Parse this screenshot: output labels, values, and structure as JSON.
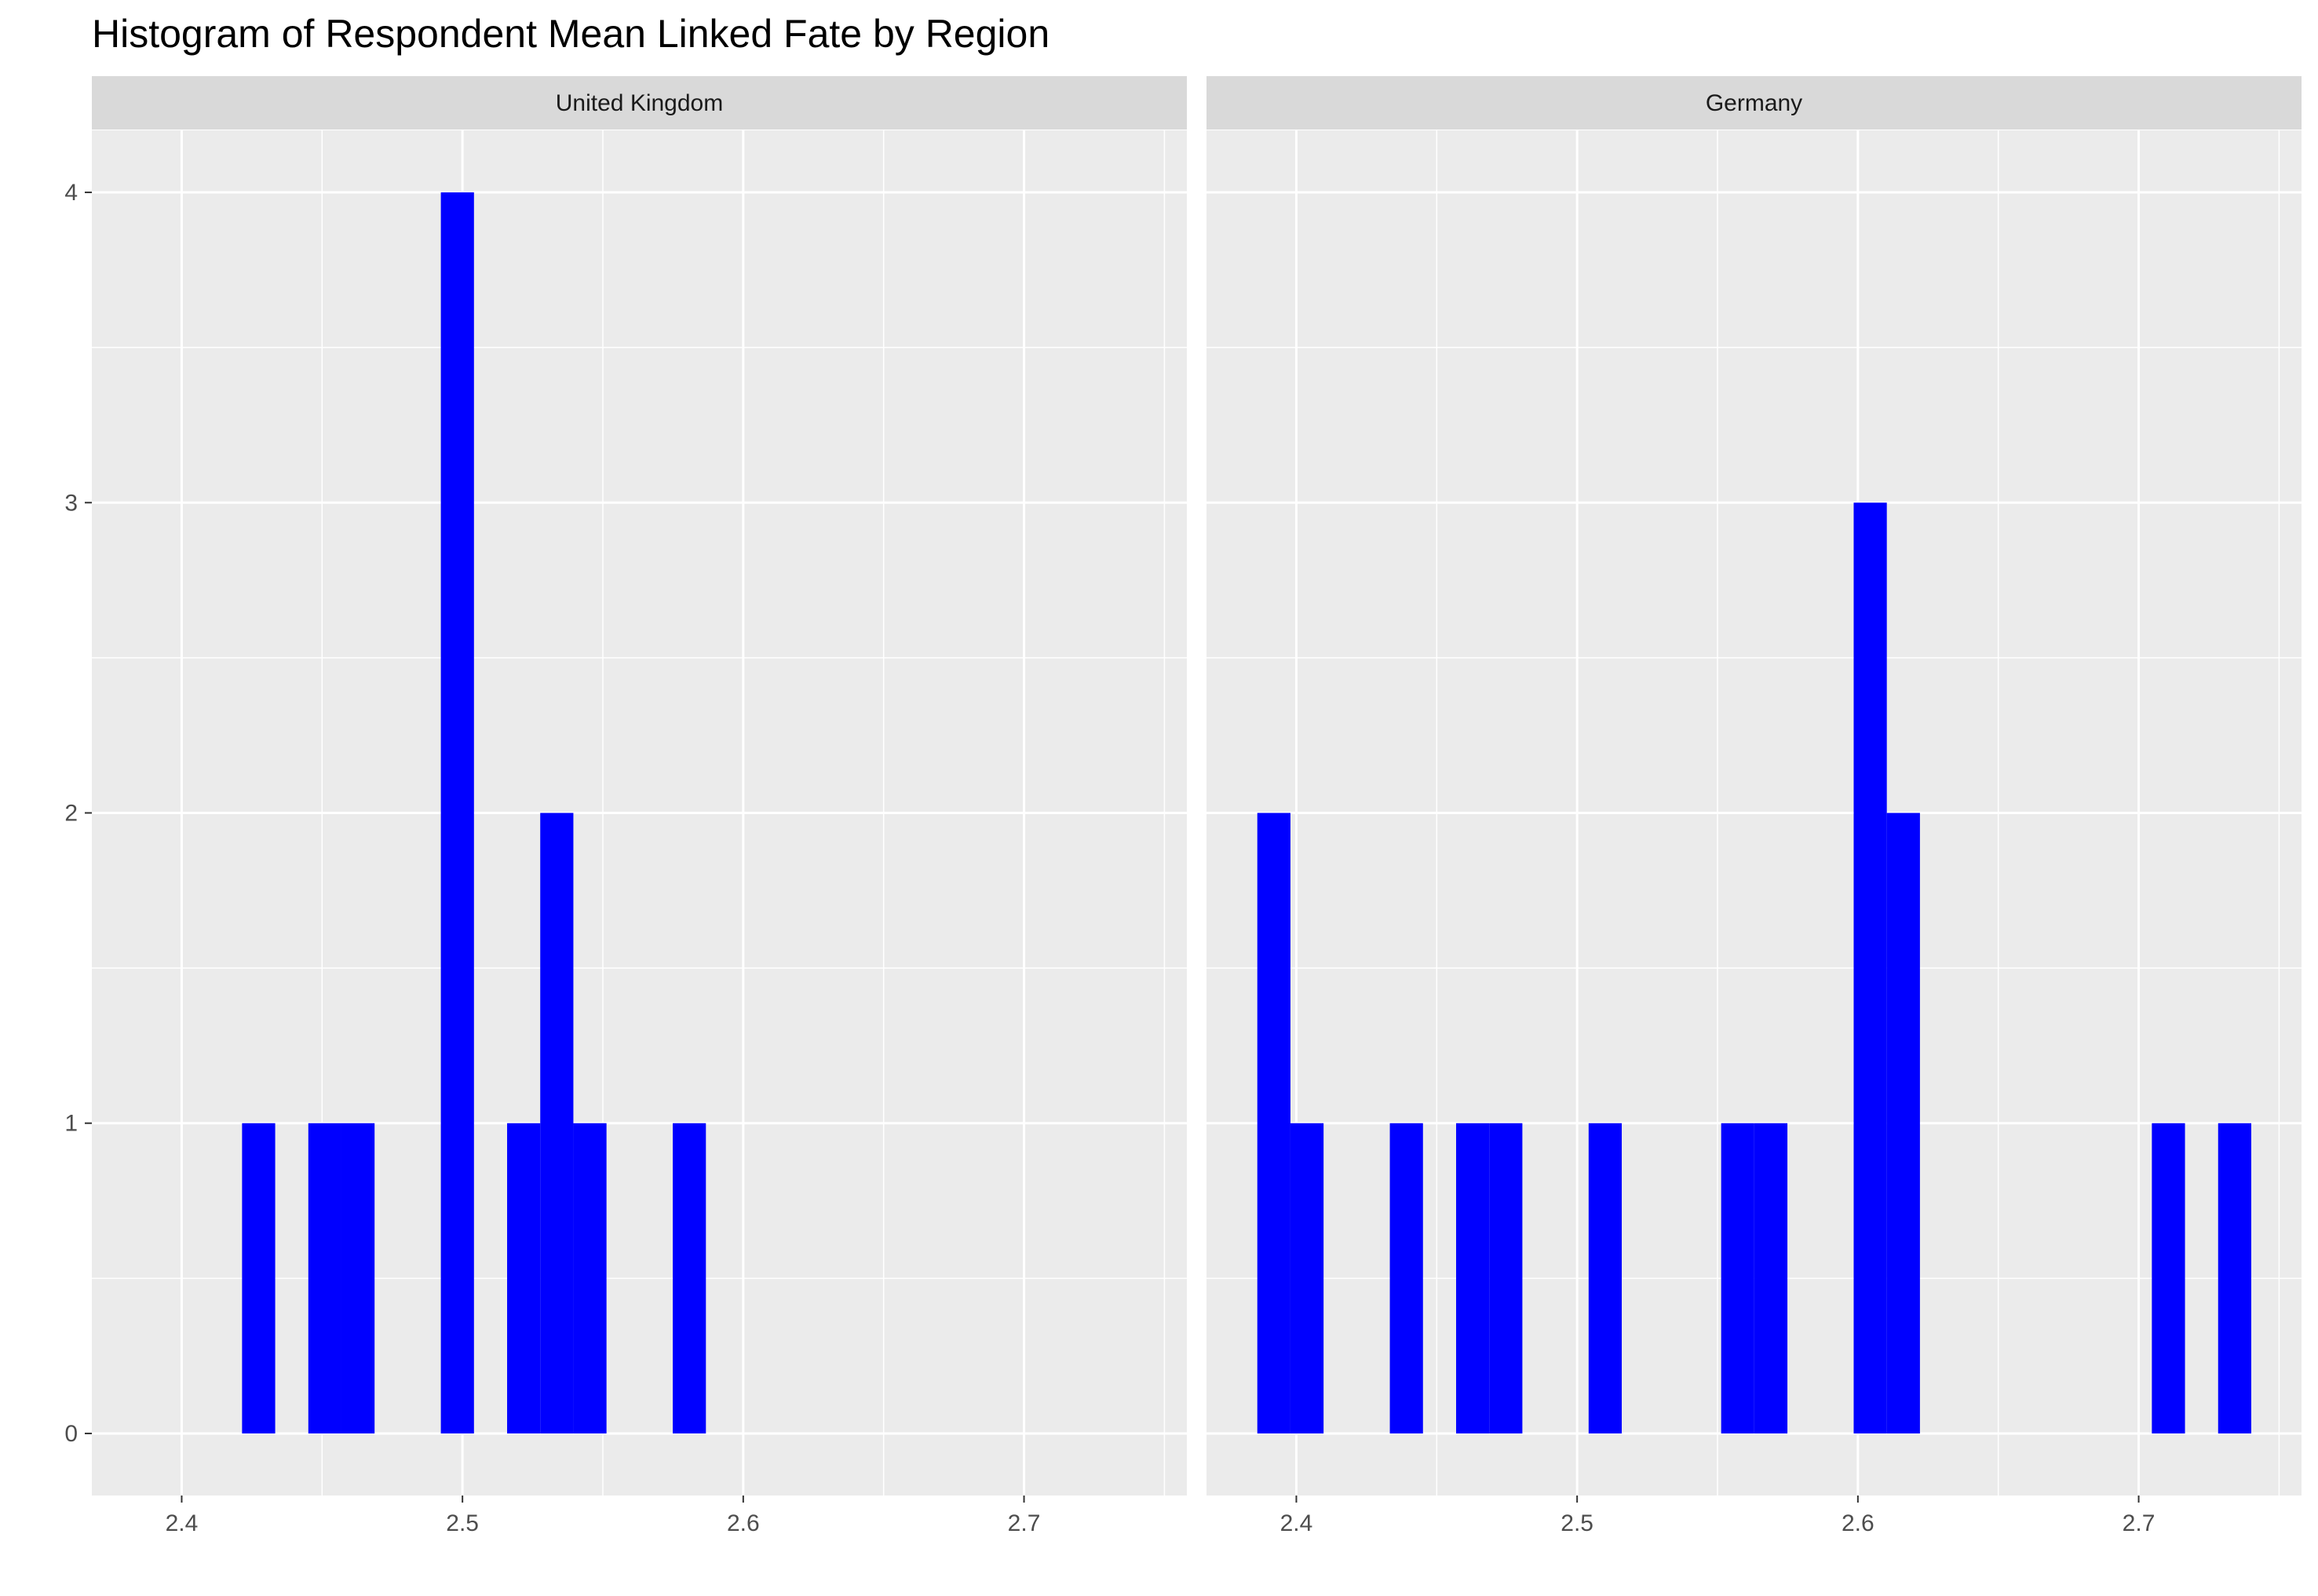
{
  "chart_data": {
    "type": "bar",
    "title": "Histogram of Respondent Mean Linked Fate by Region",
    "xlabel": "",
    "ylabel": "",
    "xlim": [
      2.368,
      2.758
    ],
    "ylim": [
      -0.2,
      4.2
    ],
    "x_ticks": [
      "2.4",
      "2.5",
      "2.6",
      "2.7"
    ],
    "y_ticks": [
      "0",
      "1",
      "2",
      "3",
      "4"
    ],
    "bin_width": 0.0118,
    "grid": true,
    "fill_color": "#0000ff",
    "panel_background": "#ebebeb",
    "strip_background": "#d9d9d9",
    "facets": [
      {
        "name": "United Kingdom",
        "bins": [
          {
            "x": 2.4274,
            "count": 1
          },
          {
            "x": 2.451,
            "count": 1
          },
          {
            "x": 2.4628,
            "count": 1
          },
          {
            "x": 2.4982,
            "count": 4
          },
          {
            "x": 2.5218,
            "count": 1
          },
          {
            "x": 2.5336,
            "count": 2
          },
          {
            "x": 2.5454,
            "count": 1
          },
          {
            "x": 2.5808,
            "count": 1
          }
        ]
      },
      {
        "name": "Germany",
        "bins": [
          {
            "x": 2.392,
            "count": 2
          },
          {
            "x": 2.4038,
            "count": 1
          },
          {
            "x": 2.4392,
            "count": 1
          },
          {
            "x": 2.4628,
            "count": 1
          },
          {
            "x": 2.4746,
            "count": 1
          },
          {
            "x": 2.51,
            "count": 1
          },
          {
            "x": 2.5572,
            "count": 1
          },
          {
            "x": 2.569,
            "count": 1
          },
          {
            "x": 2.6044,
            "count": 3
          },
          {
            "x": 2.6162,
            "count": 2
          },
          {
            "x": 2.7106,
            "count": 1
          },
          {
            "x": 2.7342,
            "count": 1
          }
        ]
      }
    ]
  }
}
